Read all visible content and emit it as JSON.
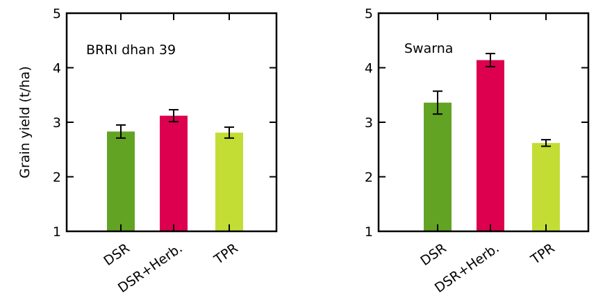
{
  "ylabel": "Grain yield (t/ha)",
  "chart_data": [
    {
      "type": "bar",
      "panel_label": "BRRI dhan 39",
      "categories": [
        "DSR",
        "DSR+Herb.",
        "TPR"
      ],
      "values": [
        2.83,
        3.12,
        2.81
      ],
      "errors": [
        0.12,
        0.11,
        0.1
      ],
      "colors": [
        "#62a323",
        "#dc004e",
        "#c3dd35"
      ],
      "ylabel": "Grain yield (t/ha)",
      "ylim": [
        1,
        5
      ],
      "yticks": [
        "1",
        "2",
        "3",
        "4",
        "5"
      ]
    },
    {
      "type": "bar",
      "panel_label": "Swarna",
      "categories": [
        "DSR",
        "DSR+Herb.",
        "TPR"
      ],
      "values": [
        3.36,
        4.14,
        2.62
      ],
      "errors": [
        0.21,
        0.12,
        0.06
      ],
      "colors": [
        "#62a323",
        "#dc004e",
        "#c3dd35"
      ],
      "ylabel": "",
      "ylim": [
        1,
        5
      ],
      "yticks": [
        "1",
        "2",
        "3",
        "4",
        "5"
      ]
    }
  ]
}
